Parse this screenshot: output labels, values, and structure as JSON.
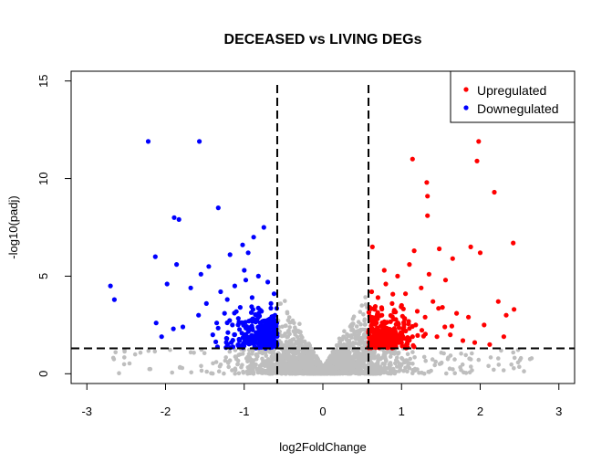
{
  "chart_data": {
    "type": "scatter",
    "title": "DECEASED vs LIVING DEGs",
    "xlabel": "log2FoldChange",
    "ylabel": "-log10(padj)",
    "xlim": [
      -3.2,
      3.2
    ],
    "ylim": [
      -0.5,
      15.5
    ],
    "xticks": [
      -3,
      -2,
      -1,
      0,
      1,
      2,
      3
    ],
    "yticks": [
      0,
      5,
      10,
      15
    ],
    "grid": false,
    "legend_position": "top-right",
    "thresholds": {
      "log2fc": 0.58,
      "neg_log10_padj": 1.3
    },
    "colors": {
      "up": "#ff0000",
      "down": "#0000ff",
      "ns": "#bebebe",
      "threshold_line": "#000000"
    },
    "series": [
      {
        "name": "Upregulated",
        "color": "#ff0000",
        "points": [
          [
            1.14,
            11.0
          ],
          [
            1.32,
            9.8
          ],
          [
            1.33,
            9.1
          ],
          [
            1.33,
            8.1
          ],
          [
            1.98,
            11.9
          ],
          [
            1.96,
            10.9
          ],
          [
            2.18,
            9.3
          ],
          [
            2.42,
            6.7
          ],
          [
            1.88,
            6.5
          ],
          [
            1.48,
            6.4
          ],
          [
            1.16,
            6.3
          ],
          [
            0.63,
            6.5
          ],
          [
            2.0,
            6.2
          ],
          [
            1.65,
            5.9
          ],
          [
            1.1,
            5.6
          ],
          [
            2.23,
            3.7
          ],
          [
            2.33,
            3.0
          ],
          [
            2.43,
            3.3
          ],
          [
            1.56,
            4.8
          ],
          [
            1.85,
            2.9
          ],
          [
            2.05,
            2.5
          ],
          [
            2.12,
            1.5
          ],
          [
            1.93,
            1.6
          ],
          [
            0.95,
            5.0
          ],
          [
            0.8,
            4.6
          ],
          [
            0.7,
            3.9
          ],
          [
            0.88,
            3.6
          ],
          [
            1.05,
            4.1
          ],
          [
            1.25,
            4.4
          ],
          [
            1.4,
            3.7
          ],
          [
            1.2,
            3.2
          ],
          [
            0.75,
            3.0
          ],
          [
            0.68,
            2.6
          ],
          [
            0.9,
            2.8
          ],
          [
            1.02,
            2.3
          ],
          [
            1.3,
            2.9
          ],
          [
            1.55,
            2.4
          ],
          [
            1.7,
            3.1
          ],
          [
            1.45,
            1.9
          ],
          [
            1.1,
            1.8
          ],
          [
            0.85,
            2.0
          ],
          [
            0.65,
            1.7
          ],
          [
            0.72,
            2.2
          ],
          [
            0.96,
            1.6
          ],
          [
            1.18,
            2.5
          ],
          [
            1.62,
            2.0
          ],
          [
            1.78,
            1.7
          ],
          [
            2.3,
            1.9
          ],
          [
            0.62,
            4.2
          ],
          [
            0.78,
            5.3
          ],
          [
            1.35,
            5.1
          ],
          [
            1.52,
            3.4
          ],
          [
            1.0,
            3.5
          ],
          [
            0.66,
            3.3
          ]
        ]
      },
      {
        "name": "Downegulated",
        "color": "#0000ff",
        "points": [
          [
            -2.22,
            11.9
          ],
          [
            -1.57,
            11.9
          ],
          [
            -1.89,
            8.0
          ],
          [
            -1.83,
            7.9
          ],
          [
            -1.33,
            8.5
          ],
          [
            -2.7,
            4.5
          ],
          [
            -2.65,
            3.8
          ],
          [
            -2.13,
            6.0
          ],
          [
            -1.86,
            5.6
          ],
          [
            -0.75,
            7.5
          ],
          [
            -0.88,
            7.0
          ],
          [
            -1.02,
            6.6
          ],
          [
            -0.95,
            6.2
          ],
          [
            -1.18,
            6.1
          ],
          [
            -1.45,
            5.5
          ],
          [
            -1.55,
            5.1
          ],
          [
            -1.68,
            4.4
          ],
          [
            -1.98,
            4.6
          ],
          [
            -2.12,
            2.6
          ],
          [
            -2.05,
            1.9
          ],
          [
            -1.9,
            2.3
          ],
          [
            -1.78,
            2.4
          ],
          [
            -1.4,
            2.0
          ],
          [
            -1.22,
            1.8
          ],
          [
            -1.0,
            5.3
          ],
          [
            -0.82,
            5.0
          ],
          [
            -0.7,
            4.7
          ],
          [
            -1.12,
            4.5
          ],
          [
            -1.3,
            4.2
          ],
          [
            -0.9,
            3.9
          ],
          [
            -0.66,
            3.6
          ],
          [
            -1.05,
            3.4
          ],
          [
            -1.25,
            3.1
          ],
          [
            -0.78,
            3.2
          ],
          [
            -0.68,
            2.8
          ],
          [
            -0.94,
            2.7
          ],
          [
            -1.15,
            2.5
          ],
          [
            -0.72,
            2.3
          ],
          [
            -0.85,
            2.1
          ],
          [
            -1.35,
            2.6
          ],
          [
            -0.62,
            4.1
          ],
          [
            -0.64,
            2.0
          ],
          [
            -1.58,
            3.0
          ],
          [
            -1.48,
            3.6
          ],
          [
            -0.98,
            4.8
          ]
        ]
      }
    ]
  }
}
